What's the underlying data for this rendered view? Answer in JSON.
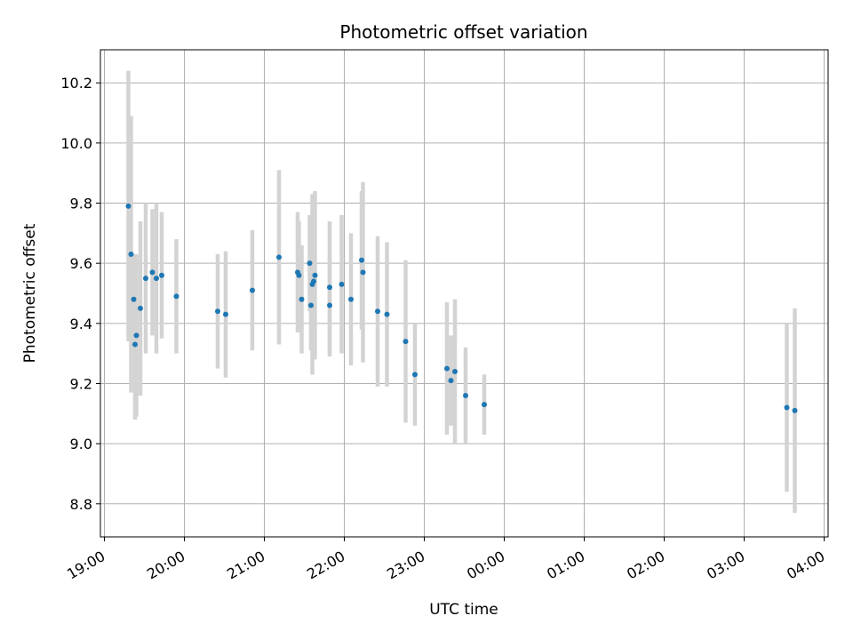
{
  "chart_data": {
    "type": "scatter",
    "title": "Photometric offset variation",
    "xlabel": "UTC time",
    "ylabel": "Photometric offset",
    "x_axis_kind": "time",
    "xlim": [
      "18:57",
      "04:03"
    ],
    "ylim": [
      8.69,
      10.31
    ],
    "grid": true,
    "x_ticks": [
      "19:00",
      "20:00",
      "21:00",
      "22:00",
      "23:00",
      "00:00",
      "01:00",
      "02:00",
      "03:00",
      "04:00"
    ],
    "y_ticks": [
      8.8,
      9.0,
      9.2,
      9.4,
      9.6,
      9.8,
      10.0,
      10.2
    ],
    "point_color": "#1f77b4",
    "errorbar_color": "#d3d3d3",
    "points": [
      {
        "x": "19:18",
        "y": 9.79,
        "err": 0.45
      },
      {
        "x": "19:20",
        "y": 9.63,
        "err": 0.46
      },
      {
        "x": "19:22",
        "y": 9.48,
        "err": 0.15
      },
      {
        "x": "19:23",
        "y": 9.33,
        "err": 0.25
      },
      {
        "x": "19:24",
        "y": 9.36,
        "err": 0.27
      },
      {
        "x": "19:27",
        "y": 9.45,
        "err": 0.29
      },
      {
        "x": "19:31",
        "y": 9.55,
        "err": 0.25
      },
      {
        "x": "19:36",
        "y": 9.57,
        "err": 0.21
      },
      {
        "x": "19:39",
        "y": 9.55,
        "err": 0.25
      },
      {
        "x": "19:43",
        "y": 9.56,
        "err": 0.21
      },
      {
        "x": "19:54",
        "y": 9.49,
        "err": 0.19
      },
      {
        "x": "20:25",
        "y": 9.44,
        "err": 0.19
      },
      {
        "x": "20:31",
        "y": 9.43,
        "err": 0.21
      },
      {
        "x": "20:51",
        "y": 9.51,
        "err": 0.2
      },
      {
        "x": "21:11",
        "y": 9.62,
        "err": 0.29
      },
      {
        "x": "21:25",
        "y": 9.57,
        "err": 0.2
      },
      {
        "x": "21:26",
        "y": 9.56,
        "err": 0.18
      },
      {
        "x": "21:28",
        "y": 9.48,
        "err": 0.18
      },
      {
        "x": "21:34",
        "y": 9.6,
        "err": 0.16
      },
      {
        "x": "21:35",
        "y": 9.46,
        "err": 0.15
      },
      {
        "x": "21:36",
        "y": 9.53,
        "err": 0.3
      },
      {
        "x": "21:37",
        "y": 9.54,
        "err": 0.25
      },
      {
        "x": "21:38",
        "y": 9.56,
        "err": 0.28
      },
      {
        "x": "21:49",
        "y": 9.46,
        "err": 0.17
      },
      {
        "x": "21:49",
        "y": 9.52,
        "err": 0.22
      },
      {
        "x": "21:58",
        "y": 9.53,
        "err": 0.23
      },
      {
        "x": "22:05",
        "y": 9.48,
        "err": 0.22
      },
      {
        "x": "22:13",
        "y": 9.61,
        "err": 0.23
      },
      {
        "x": "22:14",
        "y": 9.57,
        "err": 0.3
      },
      {
        "x": "22:25",
        "y": 9.44,
        "err": 0.25
      },
      {
        "x": "22:32",
        "y": 9.43,
        "err": 0.24
      },
      {
        "x": "22:46",
        "y": 9.34,
        "err": 0.27
      },
      {
        "x": "22:53",
        "y": 9.23,
        "err": 0.17
      },
      {
        "x": "23:17",
        "y": 9.25,
        "err": 0.22
      },
      {
        "x": "23:20",
        "y": 9.21,
        "err": 0.15
      },
      {
        "x": "23:23",
        "y": 9.24,
        "err": 0.24
      },
      {
        "x": "23:31",
        "y": 9.16,
        "err": 0.16
      },
      {
        "x": "23:45",
        "y": 9.13,
        "err": 0.1
      },
      {
        "x": "03:32",
        "y": 9.12,
        "err": 0.28
      },
      {
        "x": "03:38",
        "y": 9.11,
        "err": 0.34
      }
    ]
  }
}
